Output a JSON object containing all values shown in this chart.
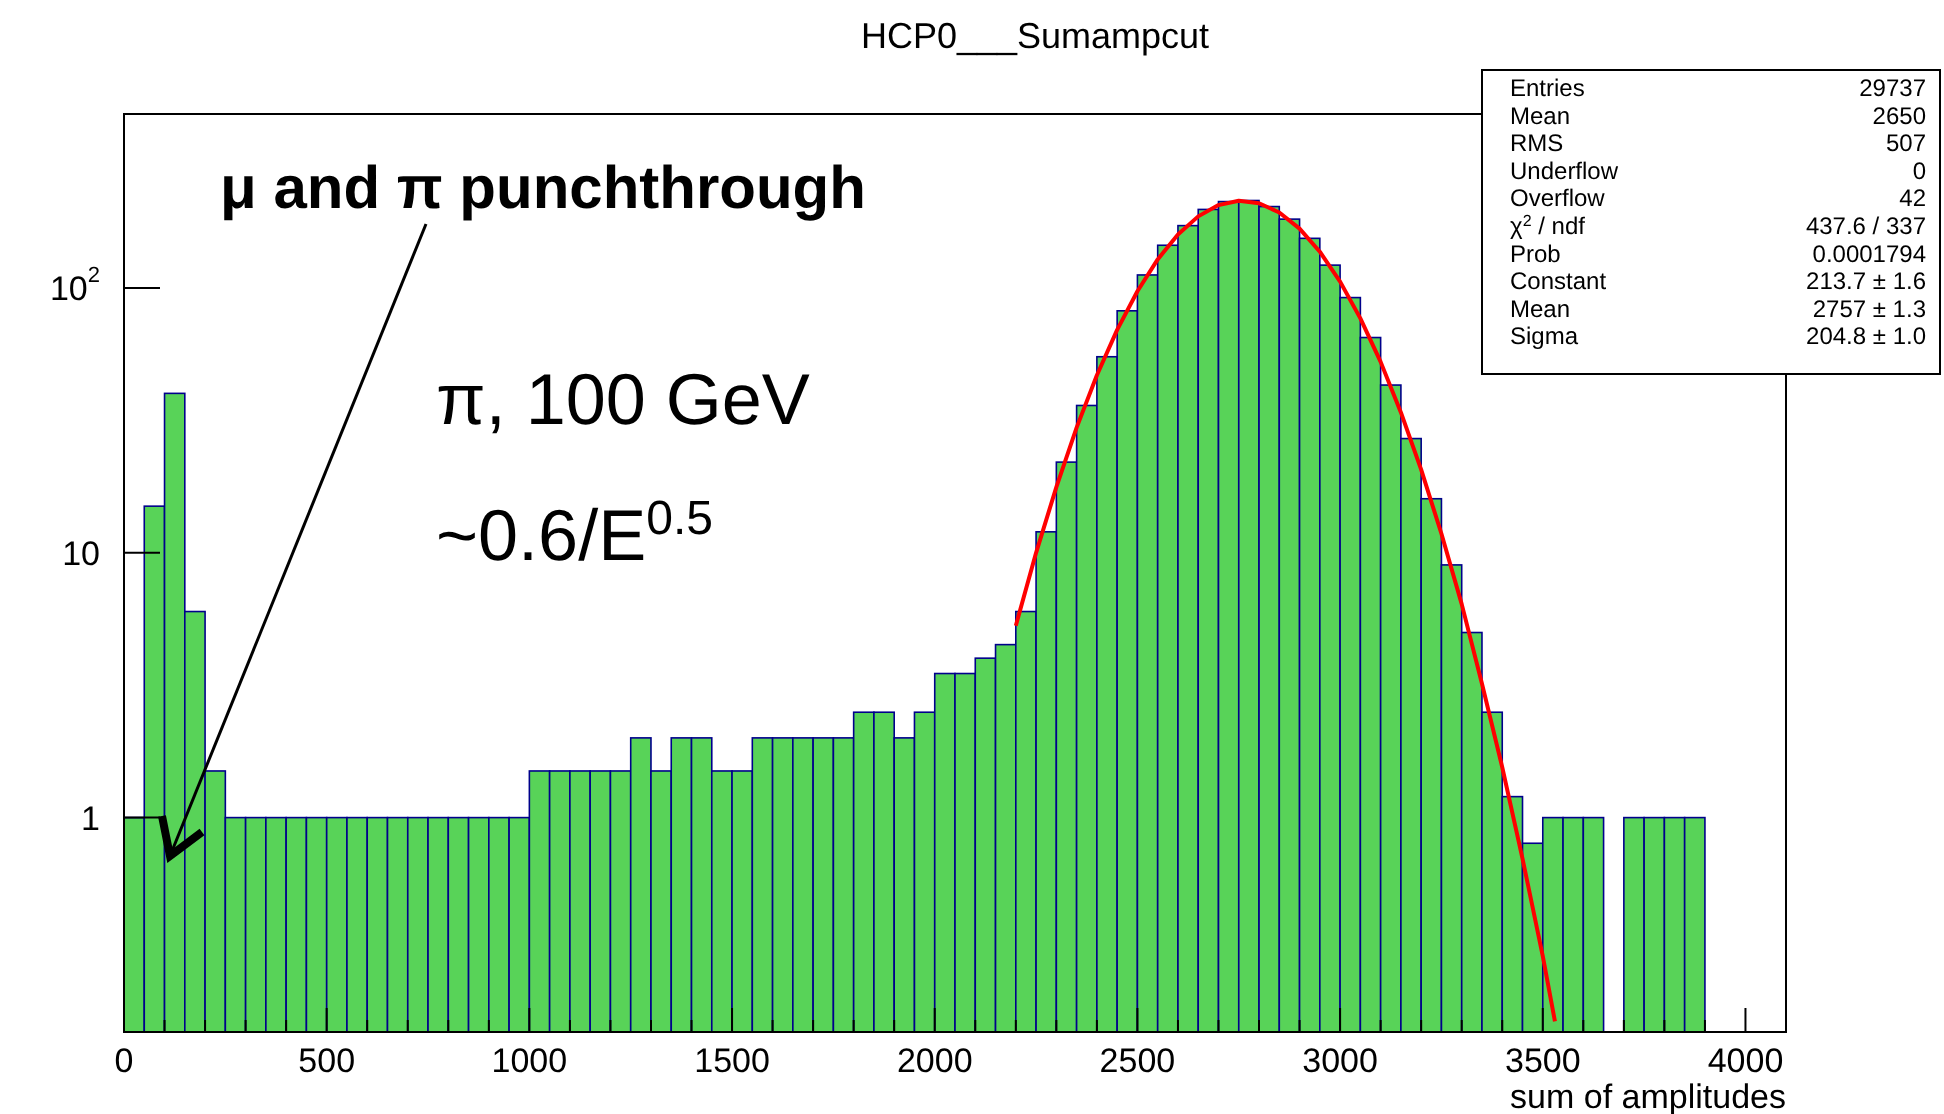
{
  "chart_data": {
    "type": "histogram",
    "title": "HCP0___Sumampcut",
    "xlabel": "sum of amplitudes",
    "bins": [
      0,
      50,
      100,
      150,
      200,
      250,
      300,
      350,
      400,
      450,
      500,
      550,
      600,
      650,
      700,
      750,
      800,
      850,
      900,
      950,
      1000,
      1050,
      1100,
      1150,
      1200,
      1250,
      1300,
      1350,
      1400,
      1450,
      1500,
      1550,
      1600,
      1650,
      1700,
      1750,
      1800,
      1850,
      1900,
      1950,
      2000,
      2050,
      2100,
      2150,
      2200,
      2250,
      2300,
      2350,
      2400,
      2450,
      2500,
      2550,
      2600,
      2650,
      2700,
      2750,
      2800,
      2850,
      2900,
      2950,
      3000,
      3050,
      3100,
      3150,
      3200,
      3250,
      3300,
      3350,
      3400,
      3450,
      3500,
      3550,
      3600,
      3650,
      3700,
      3750,
      3800,
      3850,
      3900,
      3950,
      4000,
      4050,
      4100
    ],
    "series": [
      {
        "color": "#58d358",
        "values": [
          1,
          15,
          40,
          6,
          1.5,
          1,
          1,
          1,
          1,
          1,
          1,
          1,
          1,
          1,
          1,
          1,
          1,
          1,
          1,
          1,
          1.5,
          1.5,
          1.5,
          1.5,
          1.5,
          2,
          1.5,
          2,
          2,
          1.5,
          1.5,
          2,
          2,
          2,
          2,
          2,
          2.5,
          2.5,
          2,
          2.5,
          3.5,
          3.5,
          4,
          4.5,
          6,
          12,
          22,
          36,
          55,
          82,
          112,
          145,
          172,
          198,
          212,
          214,
          203,
          182,
          154,
          122,
          92,
          65,
          43,
          27,
          16,
          9,
          5,
          2.5,
          1.2,
          0.8,
          1,
          1,
          1,
          null,
          1,
          1,
          1,
          1,
          null,
          null,
          null,
          null
        ]
      },
      {
        "type": "line",
        "color": "#ff0000",
        "x": [
          2200,
          2250,
          2300,
          2350,
          2400,
          2450,
          2500,
          2550,
          2600,
          2650,
          2700,
          2750,
          2800,
          2850,
          2900,
          2950,
          3000,
          3050,
          3100,
          3150,
          3200,
          3250,
          3300,
          3350,
          3400,
          3450,
          3500,
          3530
        ],
        "values": [
          5.3,
          10,
          17.7,
          29.7,
          46.8,
          69.5,
          97.2,
          128.2,
          159.3,
          186.4,
          205.6,
          213.6,
          209,
          192.8,
          167.5,
          137.1,
          105.7,
          76.8,
          52.6,
          33.9,
          20.6,
          11.8,
          6.4,
          3.2,
          1.55,
          0.7,
          0.3,
          0.17
        ]
      }
    ],
    "log": "y",
    "grid": false,
    "xlim": [
      0,
      4100
    ],
    "ylim": [
      0.155,
      454
    ],
    "xticks": [
      0,
      {
        "value": 100,
        "label": null
      },
      {
        "value": 200,
        "label": null
      },
      {
        "value": 300,
        "label": null
      },
      {
        "value": 400,
        "label": null
      },
      500,
      {
        "value": 600,
        "label": null
      },
      {
        "value": 700,
        "label": null
      },
      {
        "value": 800,
        "label": null
      },
      {
        "value": 900,
        "label": null
      },
      1000,
      {
        "value": 1100,
        "label": null
      },
      {
        "value": 1200,
        "label": null
      },
      {
        "value": 1300,
        "label": null
      },
      {
        "value": 1400,
        "label": null
      },
      1500,
      {
        "value": 1600,
        "label": null
      },
      {
        "value": 1700,
        "label": null
      },
      {
        "value": 1800,
        "label": null
      },
      {
        "value": 1900,
        "label": null
      },
      2000,
      {
        "value": 2100,
        "label": null
      },
      {
        "value": 2200,
        "label": null
      },
      {
        "value": 2300,
        "label": null
      },
      {
        "value": 2400,
        "label": null
      },
      2500,
      {
        "value": 2600,
        "label": null
      },
      {
        "value": 2700,
        "label": null
      },
      {
        "value": 2800,
        "label": null
      },
      {
        "value": 2900,
        "label": null
      },
      3000,
      {
        "value": 3100,
        "label": null
      },
      {
        "value": 3200,
        "label": null
      },
      {
        "value": 3300,
        "label": null
      },
      {
        "value": 3400,
        "label": null
      },
      3500,
      {
        "value": 3600,
        "label": null
      },
      {
        "value": 3700,
        "label": null
      },
      {
        "value": 3800,
        "label": null
      },
      {
        "value": 3900,
        "label": null
      },
      4000
    ],
    "yticks": [
      1,
      10,
      {
        "value": 100,
        "label": "10$^{2}$"
      }
    ],
    "annotations": [
      "μ and π punchthrough",
      "π, 100 GeV",
      "~0.6/E$^{0.5}$",
      "Entries  29737",
      "Mean  2650",
      "RMS  507",
      "Underflow  0",
      "Overflow  42",
      "χ$^{2}$ / ndf  437.6 / 337",
      "Prob  0.0001794",
      "Constant  213.7 ± 1.6",
      "Mean  2757 ± 1.3",
      "Sigma  204.8 ± 1.0"
    ]
  }
}
